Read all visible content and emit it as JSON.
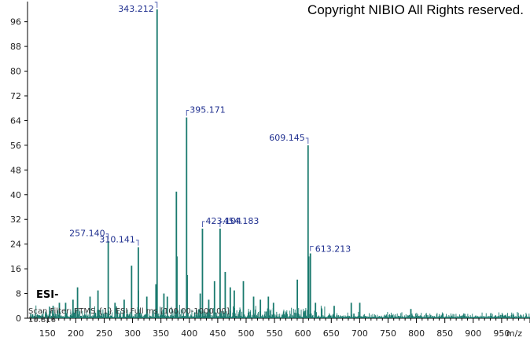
{
  "header": {
    "copyright": "Copyright NIBIO All Rights reserved."
  },
  "annotations": {
    "ion_mode": "ESI-",
    "scan_filter": "Scan Filter: FTMS {1} ESI Full ms [100.00-1000.00]",
    "time": "10.816"
  },
  "colors": {
    "spectrum": "#1a7a6e",
    "label": "#1f2f8f",
    "leader": "#5060b0"
  },
  "chart_data": {
    "type": "bar",
    "xlabel": "m/z",
    "ylabel": "",
    "xlim": [
      115,
      1000
    ],
    "ylim": [
      0,
      101
    ],
    "x_ticks": [
      "150",
      "200",
      "250",
      "300",
      "350",
      "400",
      "450",
      "500",
      "550",
      "600",
      "650",
      "700",
      "750",
      "800",
      "850",
      "900",
      "950"
    ],
    "y_ticks": [
      "0",
      "8",
      "16",
      "24",
      "32",
      "40",
      "48",
      "56",
      "64",
      "72",
      "80",
      "88",
      "96"
    ],
    "labeled_peaks": [
      {
        "mz": 343.212,
        "intensity": 100,
        "label": "343.212"
      },
      {
        "mz": 395.171,
        "intensity": 65,
        "label": "395.171"
      },
      {
        "mz": 609.145,
        "intensity": 56,
        "label": "609.145"
      },
      {
        "mz": 423.104,
        "intensity": 29,
        "label": "423.104"
      },
      {
        "mz": 454.183,
        "intensity": 29,
        "label": "454.183"
      },
      {
        "mz": 310.141,
        "intensity": 23,
        "label": "310.141"
      },
      {
        "mz": 257.14,
        "intensity": 25,
        "label": "257.140"
      },
      {
        "mz": 613.213,
        "intensity": 21,
        "label": "613.213"
      }
    ],
    "other_peaks": [
      {
        "mz": 377.2,
        "intensity": 41
      },
      {
        "mz": 378.2,
        "intensity": 20
      },
      {
        "mz": 298.3,
        "intensity": 17
      },
      {
        "mz": 396.2,
        "intensity": 14
      },
      {
        "mz": 590.2,
        "intensity": 12.5
      },
      {
        "mz": 610.2,
        "intensity": 20
      },
      {
        "mz": 463.2,
        "intensity": 15
      },
      {
        "mz": 203.1,
        "intensity": 10
      },
      {
        "mz": 239.1,
        "intensity": 9
      },
      {
        "mz": 341.2,
        "intensity": 11
      },
      {
        "mz": 444.3,
        "intensity": 12
      },
      {
        "mz": 495.2,
        "intensity": 12
      },
      {
        "mz": 472.1,
        "intensity": 10
      },
      {
        "mz": 310.2,
        "intensity": 9
      },
      {
        "mz": 325.1,
        "intensity": 7
      },
      {
        "mz": 355.2,
        "intensity": 8
      },
      {
        "mz": 361.2,
        "intensity": 7
      },
      {
        "mz": 479.1,
        "intensity": 9
      },
      {
        "mz": 513.2,
        "intensity": 7
      },
      {
        "mz": 539.2,
        "intensity": 7
      },
      {
        "mz": 419.2,
        "intensity": 8
      },
      {
        "mz": 434.2,
        "intensity": 6
      },
      {
        "mz": 182.1,
        "intensity": 5
      },
      {
        "mz": 195.1,
        "intensity": 6
      },
      {
        "mz": 225.1,
        "intensity": 7
      },
      {
        "mz": 269.1,
        "intensity": 5
      },
      {
        "mz": 285.2,
        "intensity": 6
      },
      {
        "mz": 525.2,
        "intensity": 6
      },
      {
        "mz": 548.2,
        "intensity": 5
      },
      {
        "mz": 622.2,
        "intensity": 5
      },
      {
        "mz": 655.1,
        "intensity": 4
      },
      {
        "mz": 685.2,
        "intensity": 5
      },
      {
        "mz": 700.2,
        "intensity": 5
      },
      {
        "mz": 790.2,
        "intensity": 3
      },
      {
        "mz": 160.1,
        "intensity": 4
      },
      {
        "mz": 171.1,
        "intensity": 5
      }
    ]
  }
}
